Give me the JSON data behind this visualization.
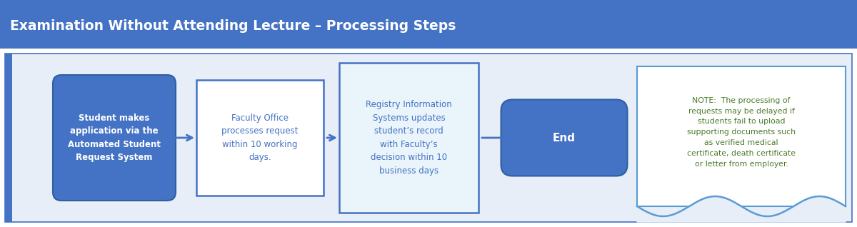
{
  "title": "Examination Without Attending Lecture – Processing Steps",
  "title_bg": "#4472C4",
  "title_color": "#FFFFFF",
  "title_fontsize": 13.5,
  "bg_color": "#FFFFFF",
  "outer_bg": "#E8EEF7",
  "border_color": "#4472C4",
  "step1_text": "Student makes\napplication via the\nAutomated Student\nRequest System",
  "step1_fill": "#4472C4",
  "step1_text_color": "#FFFFFF",
  "step2_text": "Faculty Office\nprocesses request\nwithin 10 working\ndays.",
  "step2_fill": "#FFFFFF",
  "step2_text_color": "#4472C4",
  "step2_border": "#4472C4",
  "step3_text": "Registry Information\nSystems updates\nstudent’s record\nwith Faculty’s\ndecision within 10\nbusiness days",
  "step3_fill": "#EAF4FB",
  "step3_text_color": "#4472C4",
  "step3_border": "#4472C4",
  "end_text": "End",
  "end_fill": "#4472C4",
  "end_text_color": "#FFFFFF",
  "note_text": "NOTE:  The processing of\nrequests may be delayed if\nstudents fail to upload\nsupporting documents such\nas verified medical\ncertificate, death certificate\nor letter from employer.",
  "note_fill": "#FFFFFF",
  "note_text_color": "#4B7A2B",
  "note_border": "#5B9BD5",
  "arrow_color": "#4472C4",
  "left_stripe_color": "#4472C4"
}
